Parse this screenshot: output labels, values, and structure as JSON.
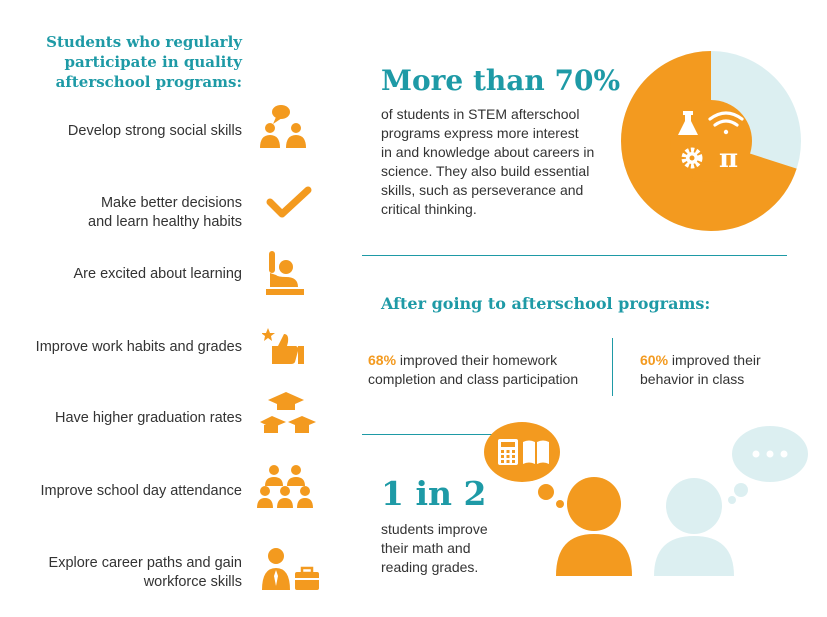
{
  "left_heading": [
    "Students who regularly",
    "participate in quality",
    "afterschool programs:"
  ],
  "benefits": [
    {
      "lines": [
        "Develop strong social skills"
      ],
      "icon": "people-talking-icon"
    },
    {
      "lines": [
        "Make better decisions",
        "and learn healthy habits"
      ],
      "icon": "checkmark-icon"
    },
    {
      "lines": [
        "Are excited about learning"
      ],
      "icon": "raised-hand-icon"
    },
    {
      "lines": [
        "Improve work habits and grades"
      ],
      "icon": "thumbs-up-star-icon"
    },
    {
      "lines": [
        "Have higher graduation rates"
      ],
      "icon": "graduation-caps-icon"
    },
    {
      "lines": [
        "Improve school day attendance"
      ],
      "icon": "group-of-students-icon"
    },
    {
      "lines": [
        "Explore career paths and gain",
        "workforce skills"
      ],
      "icon": "worker-briefcase-icon"
    }
  ],
  "stem": {
    "headline": "More than 70%",
    "text": [
      "of students in STEM afterschool",
      "programs express more interest",
      "in and knowledge about careers in",
      "science. They also build essential",
      "skills, such as perseverance and",
      "critical thinking."
    ],
    "donut_fraction": 0.7,
    "icons": [
      "flask-icon",
      "wifi-icon",
      "gear-icon",
      "pi-icon"
    ]
  },
  "after": {
    "title": "After going to afterschool programs:",
    "stat1_pct": "68%",
    "stat1_line1": " improved their homework",
    "stat1_line2": "completion and class participation",
    "stat2_pct": "60%",
    "stat2_line1": " improved their",
    "stat2_line2": "behavior in class"
  },
  "math": {
    "headline": "1 in 2",
    "text": [
      "students improve",
      "their math and",
      "reading grades."
    ],
    "bubble_icons": [
      "calculator-icon",
      "book-icon"
    ]
  },
  "colors": {
    "teal": "#1e9aa6",
    "orange": "#f39a1f",
    "light_blue": "#dceff1",
    "text": "#333333"
  }
}
